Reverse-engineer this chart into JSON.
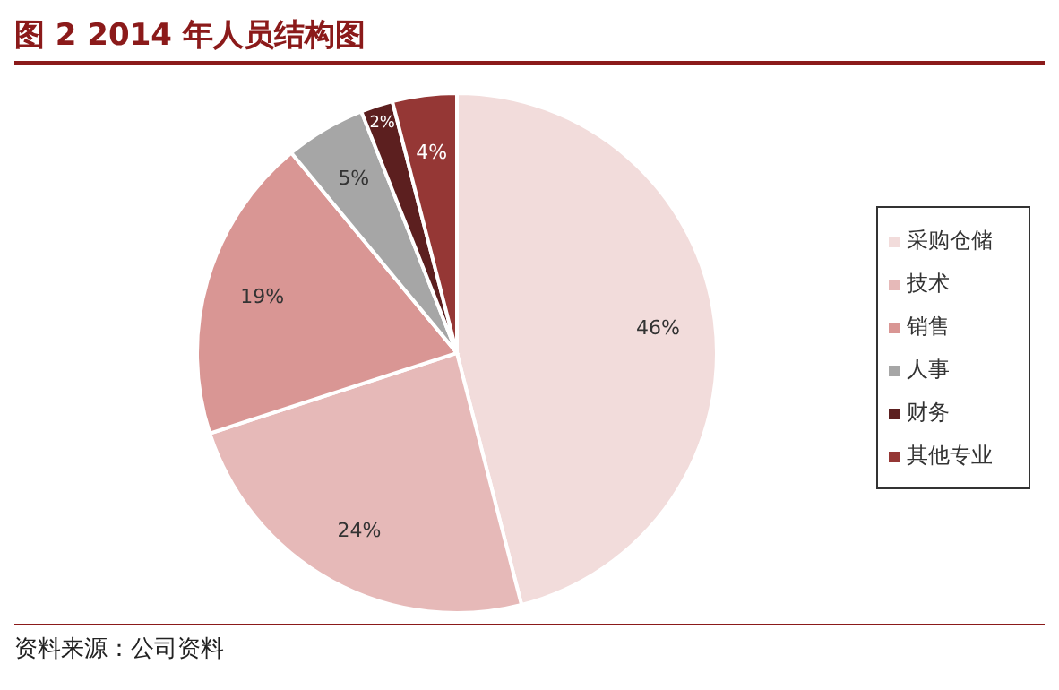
{
  "chart_data": {
    "type": "pie",
    "title": "图 2 2014 年人员结构图",
    "categories": [
      "采购仓储",
      "技术",
      "销售",
      "人事",
      "财务",
      "其他专业"
    ],
    "values": [
      46,
      24,
      19,
      5,
      2,
      4
    ],
    "value_labels": [
      "46%",
      "24%",
      "19%",
      "5%",
      "2%",
      "4%"
    ],
    "colors": [
      "#f2dcdb",
      "#e6b9b8",
      "#d99694",
      "#a6a6a6",
      "#5c1f1f",
      "#953735"
    ],
    "legend": "right",
    "annotations": [
      "资料来源：公司资料"
    ]
  }
}
